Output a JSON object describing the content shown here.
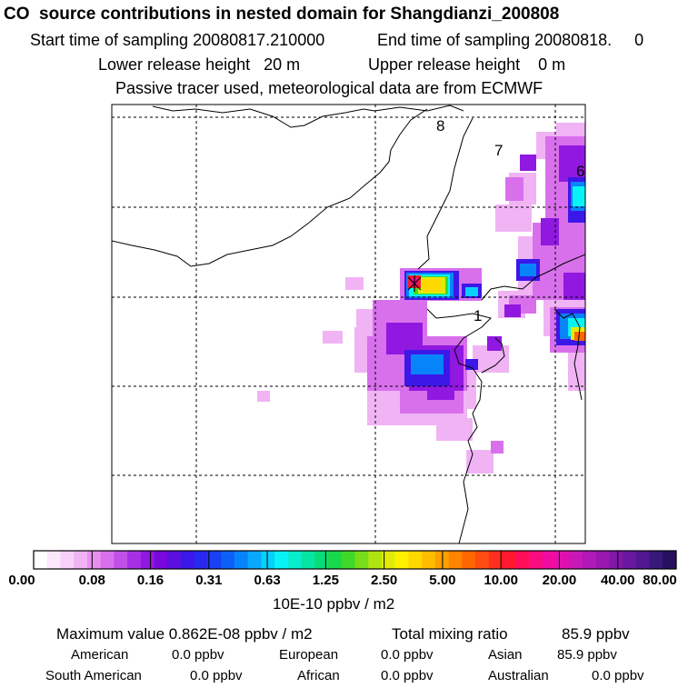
{
  "header": {
    "title": "CO  source contributions in nested domain for Shangdianzi_200808",
    "start_label": "Start time of sampling 20080817.210000",
    "end_label": "End time of sampling 20080818.     0",
    "lower_label": "Lower release height   20 m",
    "upper_label": "Upper release height    0 m",
    "tracer_note": "Passive tracer used, meteorological data are from ECMWF"
  },
  "map_labels": [
    "8",
    "7",
    "6",
    "1"
  ],
  "colorbar": {
    "ticks": [
      "0.00",
      "0.08",
      "0.16",
      "0.31",
      "0.63",
      "1.25",
      "2.50",
      "5.00",
      "10.00",
      "20.00",
      "40.00",
      "80.00"
    ],
    "unit": "10E-10 ppbv / m2",
    "colors": [
      "#ffffff",
      "#fce8fc",
      "#f8d0f8",
      "#f0b4f4",
      "#e890f0",
      "#d870ec",
      "#c050e8",
      "#a830e4",
      "#9018e0",
      "#7808dc",
      "#5a10e0",
      "#3c18e8",
      "#2828f0",
      "#1a40f4",
      "#0c60f8",
      "#0884fa",
      "#08a8fc",
      "#08d0fc",
      "#08f4f4",
      "#08ecd0",
      "#08e4a4",
      "#08dc78",
      "#18d84c",
      "#40d828",
      "#78dc18",
      "#b0e410",
      "#e0ec08",
      "#fff000",
      "#ffd800",
      "#ffbc00",
      "#ffa000",
      "#ff8400",
      "#ff6600",
      "#ff4c10",
      "#ff3020",
      "#ff1830",
      "#ff0c58",
      "#f80c80",
      "#f00ca0",
      "#e010b0",
      "#c818b8",
      "#b018b8",
      "#9818b0",
      "#8018a8",
      "#6818a0",
      "#501890",
      "#381878",
      "#281060"
    ]
  },
  "stats": {
    "max_label": "Maximum value  0.862E-08 ppbv / m2",
    "total_label": "Total mixing ratio",
    "total_value": "85.9 ppbv",
    "american_label": "American",
    "american_value": "0.0 ppbv",
    "european_label": "European",
    "european_value": "0.0 ppbv",
    "asian_label": "Asian",
    "asian_value": "85.9 ppbv",
    "south_american_label": "South American",
    "south_american_value": "0.0 ppbv",
    "african_label": "African",
    "african_value": "0.0 ppbv",
    "australian_label": "Australian",
    "australian_value": "0.0 ppbv"
  },
  "chart_data": {
    "type": "heatmap",
    "title": "CO  source contributions in nested domain for Shangdianzi_200808",
    "colorbar_ticks": [
      0.0,
      0.08,
      0.16,
      0.31,
      0.63,
      1.25,
      2.5,
      5.0,
      10.0,
      20.0,
      40.0,
      80.0
    ],
    "colorbar_unit": "10E-10 ppbv / m2",
    "maximum_value": "0.862E-08 ppbv / m2",
    "total_mixing_ratio_ppbv": 85.9,
    "contributions_ppbv": {
      "American": 0.0,
      "European": 0.0,
      "Asian": 85.9,
      "South American": 0.0,
      "African": 0.0,
      "Australian": 0.0
    },
    "grid": "on"
  }
}
